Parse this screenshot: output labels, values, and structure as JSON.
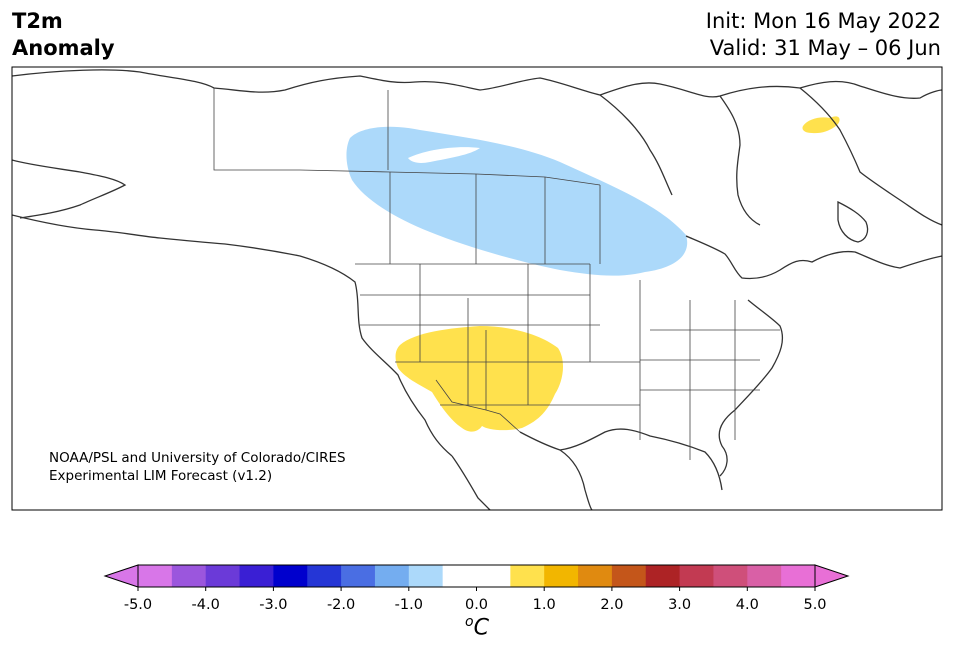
{
  "title": {
    "left_line1": "T2m",
    "left_line2": "Anomaly",
    "init": "Init: Mon 16 May 2022",
    "valid": "Valid: 31 May – 06 Jun"
  },
  "credit": {
    "line1": "NOAA/PSL and University of Colorado/CIRES",
    "line2": "Experimental LIM Forecast (v1.2)"
  },
  "colorbar": {
    "unit": "C",
    "unit_prefix": "o",
    "colors": [
      "#d876e8",
      "#9b56dd",
      "#6b3ad8",
      "#3a1fd4",
      "#0000cd",
      "#2536d6",
      "#4a6ee3",
      "#74adf0",
      "#acd9fa",
      "#ffffff",
      "#ffffff",
      "#ffe14d",
      "#f2b600",
      "#e08a10",
      "#c4561a",
      "#ad2325",
      "#c23a52",
      "#cf4f7a",
      "#d960a6",
      "#e86fd6"
    ],
    "ticks": [
      {
        "value": -5.0,
        "label": "-5.0"
      },
      {
        "value": -4.0,
        "label": "-4.0"
      },
      {
        "value": -3.0,
        "label": "-3.0"
      },
      {
        "value": -2.0,
        "label": "-2.0"
      },
      {
        "value": -1.0,
        "label": "-1.0"
      },
      {
        "value": 0.0,
        "label": "0.0"
      },
      {
        "value": 1.0,
        "label": "1.0"
      },
      {
        "value": 2.0,
        "label": "2.0"
      },
      {
        "value": 3.0,
        "label": "3.0"
      },
      {
        "value": 4.0,
        "label": "4.0"
      },
      {
        "value": 5.0,
        "label": "5.0"
      }
    ],
    "range": [
      -5.0,
      5.0
    ],
    "extend": "both"
  },
  "map": {
    "region": "North America",
    "anomaly_regions": [
      {
        "name": "cool-anomaly-canada-prairies",
        "approx_value": -1.0,
        "color": "#acd9fa"
      },
      {
        "name": "warm-anomaly-us-southwest",
        "approx_value": 1.0,
        "color": "#ffe14d"
      },
      {
        "name": "warm-anomaly-labrador",
        "approx_value": 1.0,
        "color": "#ffe14d"
      }
    ]
  }
}
